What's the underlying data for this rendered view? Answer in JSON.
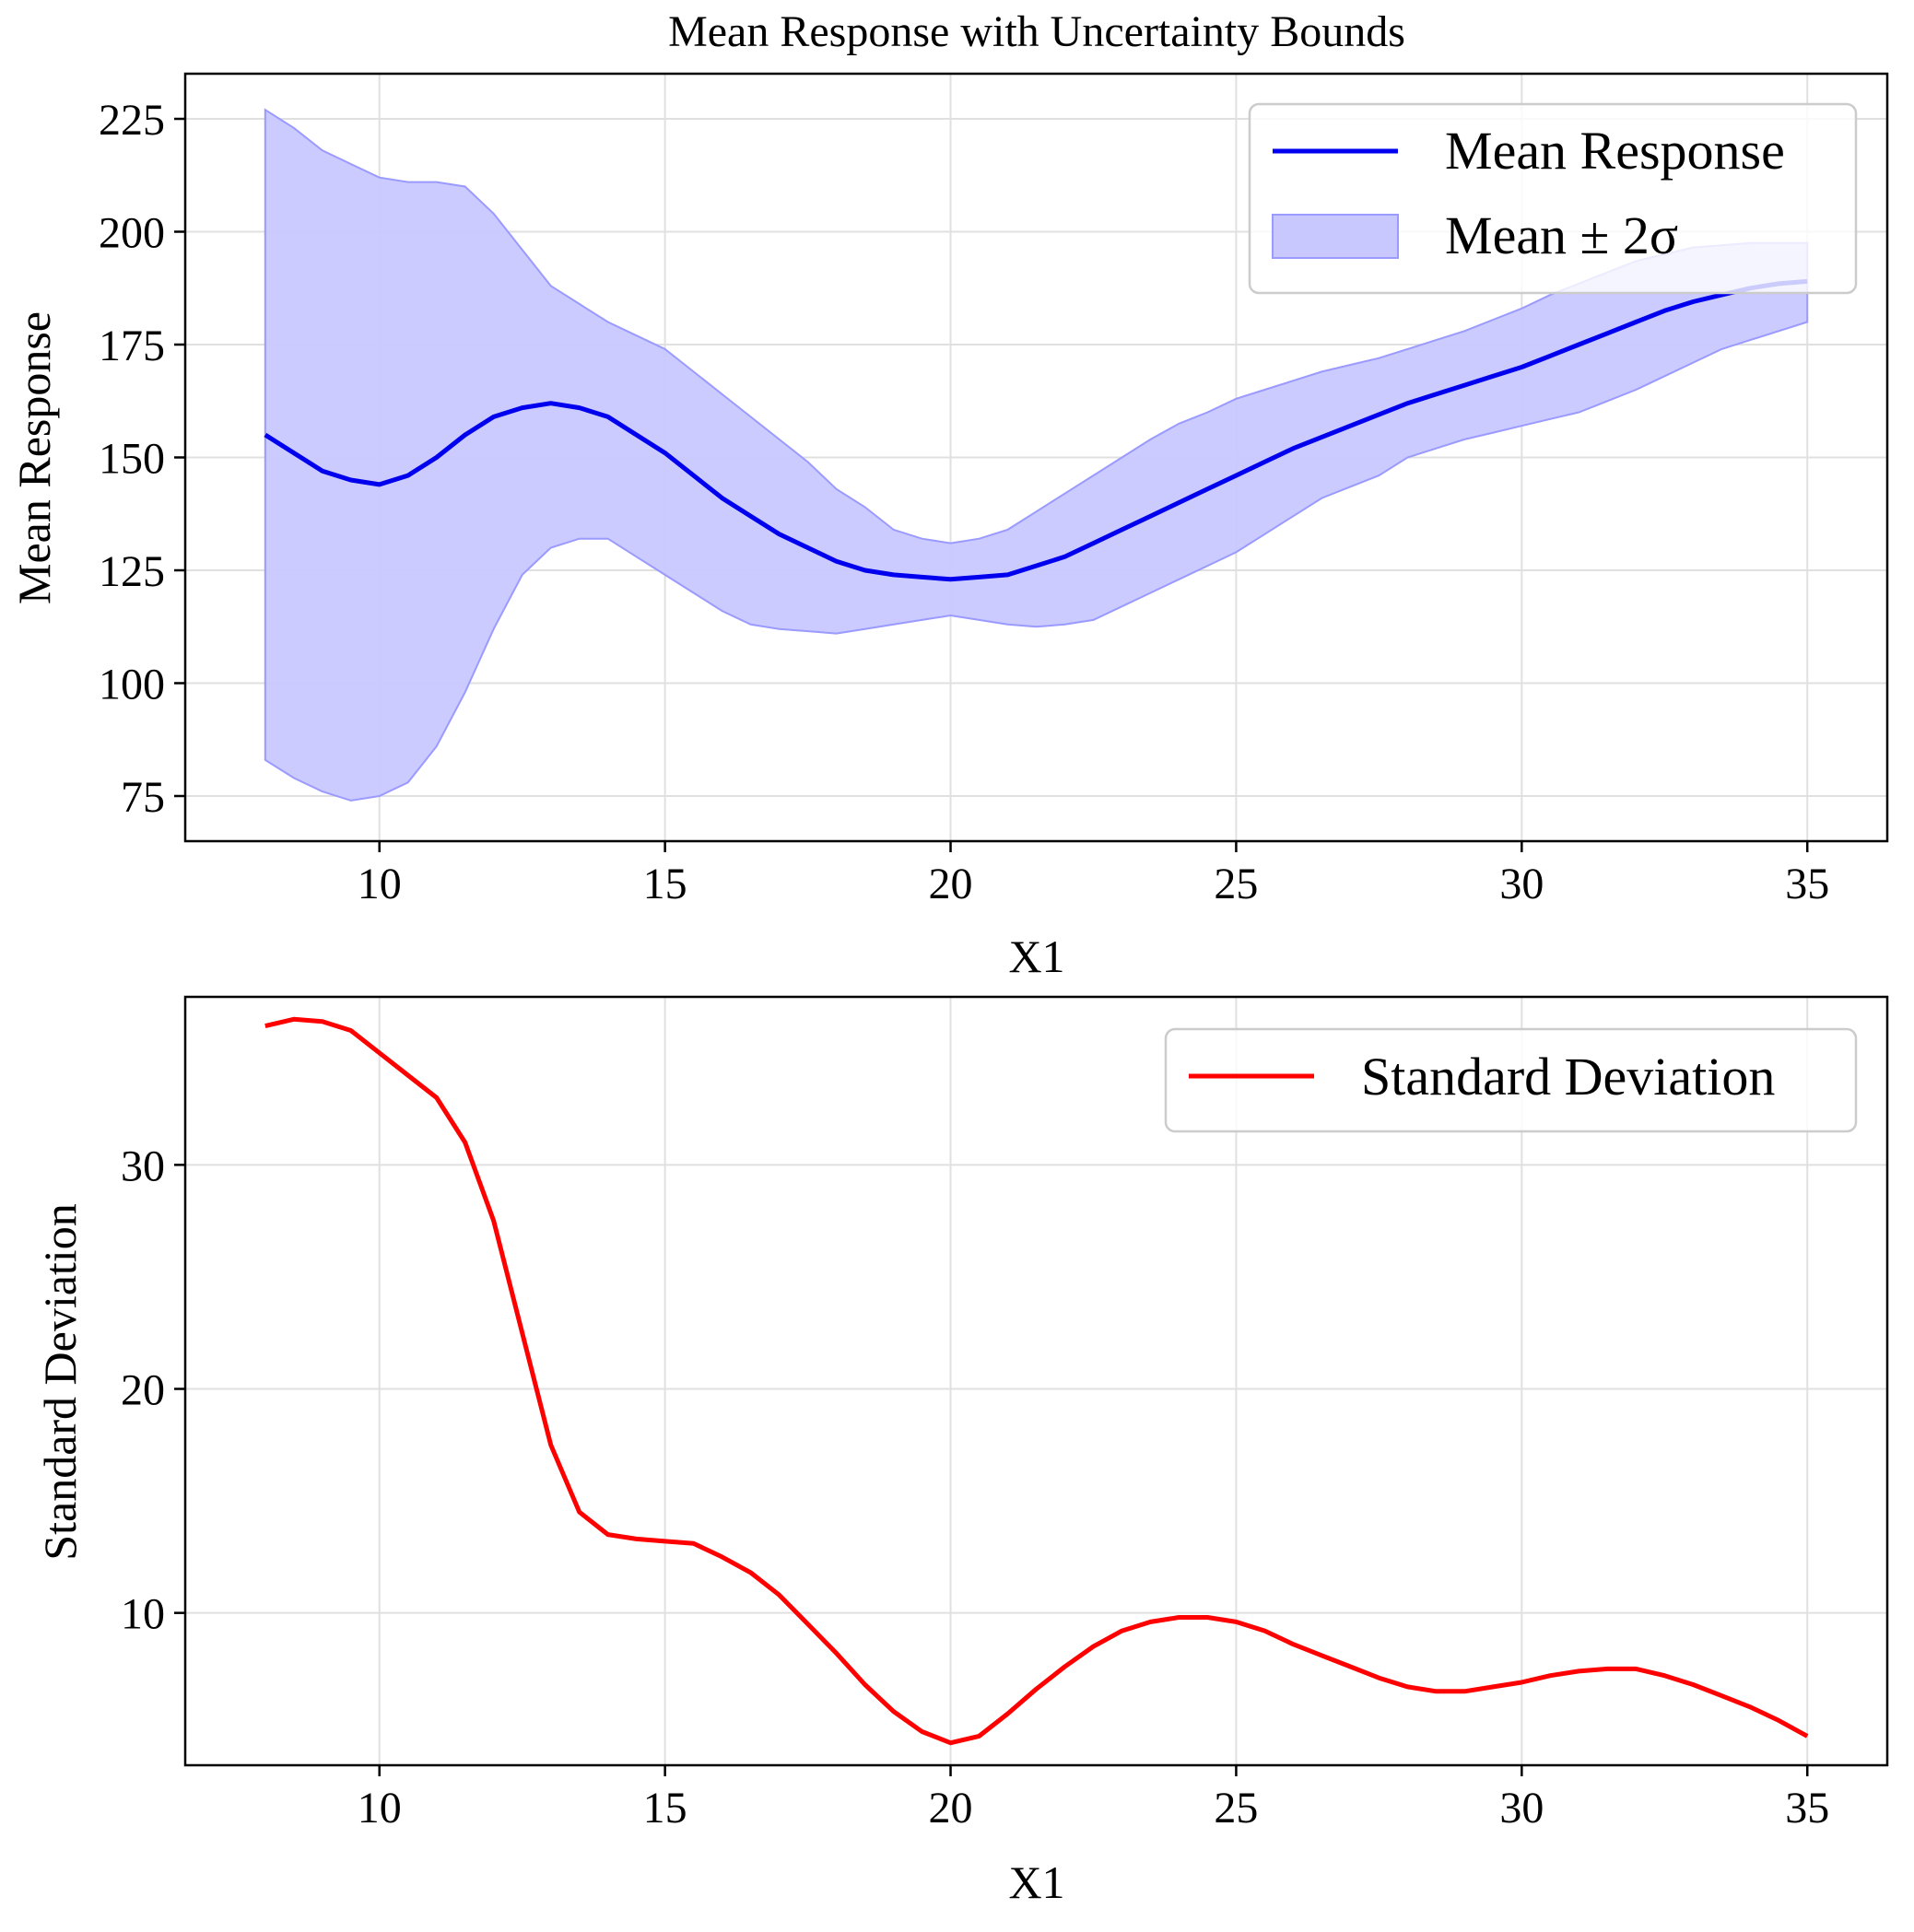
{
  "chart_data": [
    {
      "type": "line",
      "title": "Mean Response with Uncertainty Bounds",
      "xlabel": "X1",
      "ylabel": "Mean Response",
      "xlim": [
        6.6,
        36.4
      ],
      "ylim": [
        65,
        235
      ],
      "xticks": [
        10,
        15,
        20,
        25,
        30,
        35
      ],
      "yticks": [
        75,
        100,
        125,
        150,
        175,
        200,
        225
      ],
      "grid": true,
      "legend_position": "upper right",
      "legend": [
        "Mean Response",
        "Mean ± 2σ"
      ],
      "colors": {
        "mean": "#0000ee",
        "band_fill": "#c8c8ff",
        "band_edge": "#9a9aff"
      },
      "series": [
        {
          "name": "Mean Response",
          "x": [
            8,
            8.5,
            9,
            9.5,
            10,
            10.5,
            11,
            11.5,
            12,
            12.5,
            13,
            13.5,
            14,
            14.5,
            15,
            15.5,
            16,
            16.5,
            17,
            17.5,
            18,
            18.5,
            19,
            19.5,
            20,
            20.5,
            21,
            21.5,
            22,
            22.5,
            23,
            23.5,
            24,
            24.5,
            25,
            25.5,
            26,
            26.5,
            27,
            27.5,
            28,
            28.5,
            29,
            29.5,
            30,
            30.5,
            31,
            31.5,
            32,
            32.5,
            33,
            33.5,
            34,
            34.5,
            35
          ],
          "y": [
            155,
            151,
            147,
            145,
            144,
            146,
            150,
            155,
            159,
            161,
            162,
            161,
            159,
            155,
            151,
            146,
            141,
            137,
            133,
            130,
            127,
            125,
            124,
            123.5,
            123,
            123.5,
            124,
            126,
            128,
            131,
            134,
            137,
            140,
            143,
            146,
            149,
            152,
            154.5,
            157,
            159.5,
            162,
            164,
            166,
            168,
            170,
            172.5,
            175,
            177.5,
            180,
            182.5,
            184.5,
            186,
            187.5,
            188.5,
            189
          ]
        },
        {
          "name": "Mean ± 2σ",
          "x": [
            8,
            8.5,
            9,
            9.5,
            10,
            10.5,
            11,
            11.5,
            12,
            12.5,
            13,
            13.5,
            14,
            14.5,
            15,
            15.5,
            16,
            16.5,
            17,
            17.5,
            18,
            18.5,
            19,
            19.5,
            20,
            20.5,
            21,
            21.5,
            22,
            22.5,
            23,
            23.5,
            24,
            24.5,
            25,
            25.5,
            26,
            26.5,
            27,
            27.5,
            28,
            28.5,
            29,
            29.5,
            30,
            30.5,
            31,
            31.5,
            32,
            32.5,
            33,
            33.5,
            34,
            34.5,
            35
          ],
          "upper": [
            227,
            223,
            218,
            215,
            212,
            211,
            211,
            210,
            204,
            196,
            188,
            184,
            180,
            177,
            174,
            169,
            164,
            159,
            154,
            149,
            143,
            139,
            134,
            132,
            131,
            132,
            134,
            138,
            142,
            146,
            150,
            154,
            157.5,
            160,
            163,
            165,
            167,
            169,
            170.5,
            172,
            174,
            176,
            178,
            180.5,
            183,
            186,
            188.5,
            191,
            193.5,
            195,
            196.5,
            197,
            197.5,
            197.5,
            197.5
          ],
          "lower": [
            83,
            79,
            76,
            74,
            75,
            78,
            86,
            98,
            112,
            124,
            130,
            132,
            132,
            128,
            124,
            120,
            116,
            113,
            112,
            111.5,
            111,
            112,
            113,
            114,
            115,
            114,
            113,
            112.5,
            113,
            114,
            117,
            120,
            123,
            126,
            129,
            133,
            137,
            141,
            143.5,
            146,
            150,
            152,
            154,
            155.5,
            157,
            158.5,
            160,
            162.5,
            165,
            168,
            171,
            174,
            176,
            178,
            180
          ]
        }
      ]
    },
    {
      "type": "line",
      "title": "",
      "xlabel": "X1",
      "ylabel": "Standard Deviation",
      "xlim": [
        6.6,
        36.4
      ],
      "ylim": [
        3.2,
        37.5
      ],
      "xticks": [
        10,
        15,
        20,
        25,
        30,
        35
      ],
      "yticks": [
        10,
        20,
        30
      ],
      "grid": true,
      "legend_position": "upper right",
      "legend": [
        "Standard Deviation"
      ],
      "colors": {
        "line": "#ff0000"
      },
      "series": [
        {
          "name": "Standard Deviation",
          "x": [
            8,
            8.5,
            9,
            9.5,
            10,
            10.5,
            11,
            11.5,
            12,
            12.5,
            13,
            13.5,
            14,
            14.5,
            15,
            15.5,
            16,
            16.5,
            17,
            17.5,
            18,
            18.5,
            19,
            19.5,
            20,
            20.5,
            21,
            21.5,
            22,
            22.5,
            23,
            23.5,
            24,
            24.5,
            25,
            25.5,
            26,
            26.5,
            27,
            27.5,
            28,
            28.5,
            29,
            29.5,
            30,
            30.5,
            31,
            31.5,
            32,
            32.5,
            33,
            33.5,
            34,
            34.5,
            35
          ],
          "y": [
            36.2,
            36.5,
            36.4,
            36,
            35,
            34,
            33,
            31,
            27.5,
            22.5,
            17.5,
            14.5,
            13.5,
            13.3,
            13.2,
            13.1,
            12.5,
            11.8,
            10.8,
            9.5,
            8.2,
            6.8,
            5.6,
            4.7,
            4.2,
            4.5,
            5.5,
            6.6,
            7.6,
            8.5,
            9.2,
            9.6,
            9.8,
            9.8,
            9.6,
            9.2,
            8.6,
            8.1,
            7.6,
            7.1,
            6.7,
            6.5,
            6.5,
            6.7,
            6.9,
            7.2,
            7.4,
            7.5,
            7.5,
            7.2,
            6.8,
            6.3,
            5.8,
            5.2,
            4.5
          ]
        }
      ]
    }
  ]
}
